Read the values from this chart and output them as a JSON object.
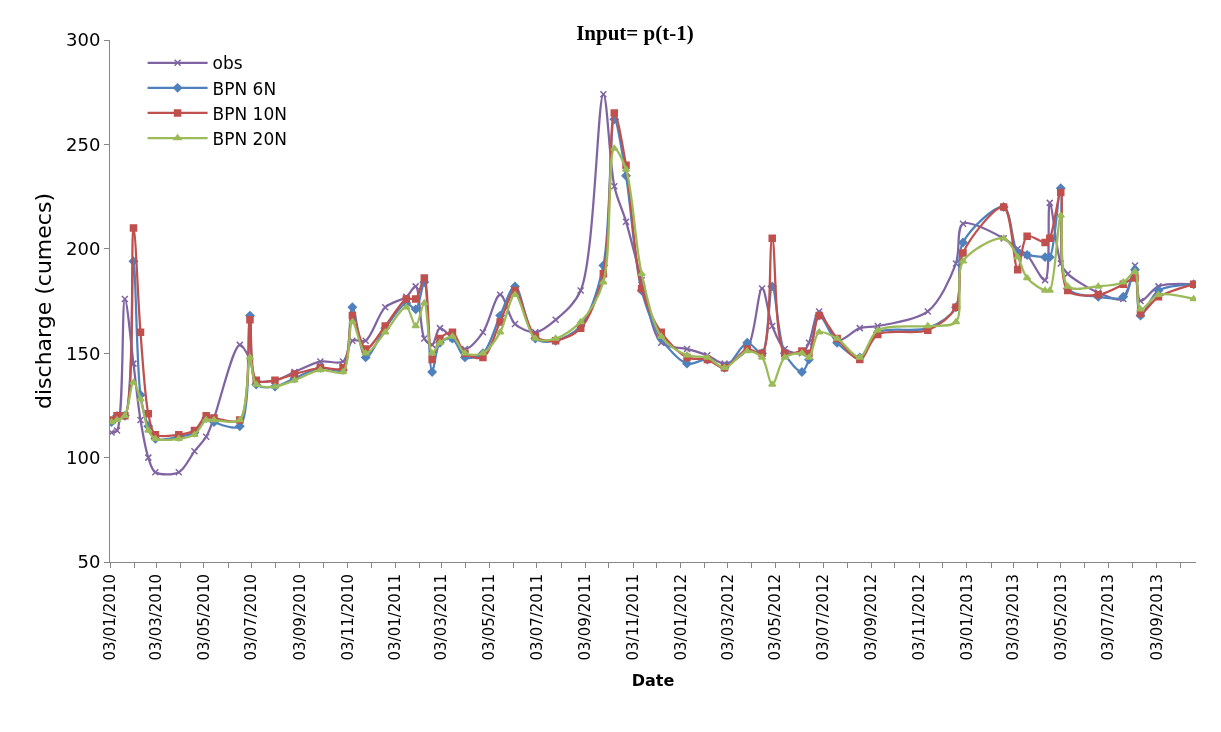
{
  "chart_data": {
    "type": "line",
    "title": "Input= p(t-1)",
    "xlabel": "Date",
    "ylabel": "discharge (cumecs)",
    "x": [
      "2010-01-05",
      "2010-01-12",
      "2010-01-22",
      "2010-02-02",
      "2010-02-11",
      "2010-02-21",
      "2010-03-02",
      "2010-04-01",
      "2010-04-21",
      "2010-05-06",
      "2010-05-16",
      "2010-06-18",
      "2010-07-01",
      "2010-07-09",
      "2010-08-02",
      "2010-08-27",
      "2010-09-29",
      "2010-10-28",
      "2010-11-09",
      "2010-11-26",
      "2010-12-21",
      "2011-01-17",
      "2011-01-29",
      "2011-02-09",
      "2011-02-19",
      "2011-03-01",
      "2011-03-17",
      "2011-04-02",
      "2011-04-25",
      "2011-05-17",
      "2011-06-05",
      "2011-07-01",
      "2011-07-27",
      "2011-08-28",
      "2011-09-26",
      "2011-10-10",
      "2011-10-25",
      "2011-11-14",
      "2011-12-09",
      "2012-01-11",
      "2012-02-06",
      "2012-02-28",
      "2012-03-28",
      "2012-04-16",
      "2012-04-29",
      "2012-05-15",
      "2012-06-06",
      "2012-06-15",
      "2012-06-28",
      "2012-07-21",
      "2012-08-19",
      "2012-09-11",
      "2012-11-14",
      "2012-12-20",
      "2012-12-29",
      "2013-02-19",
      "2013-03-09",
      "2013-03-21",
      "2013-04-13",
      "2013-04-19",
      "2013-05-03",
      "2013-05-12",
      "2013-06-20",
      "2013-07-22",
      "2013-08-06",
      "2013-08-13",
      "2013-09-05",
      "2013-10-20"
    ],
    "series": [
      {
        "name": "obs",
        "color": "#8064a2",
        "marker": "cross",
        "values": [
          112,
          113,
          176,
          145,
          118,
          100,
          93,
          93,
          103,
          110,
          119,
          154,
          147,
          137,
          137,
          141,
          146,
          146,
          156,
          156,
          172,
          177,
          182,
          157,
          154,
          162,
          157,
          152,
          160,
          178,
          164,
          160,
          166,
          180,
          274,
          230,
          213,
          185,
          155,
          152,
          149,
          145,
          152,
          181,
          163,
          152,
          150,
          155,
          170,
          156,
          162,
          163,
          170,
          193,
          212,
          205,
          200,
          197,
          185,
          222,
          193,
          188,
          179,
          176,
          192,
          175,
          182,
          183
        ]
      },
      {
        "name": "BPN 6N",
        "color": "#4f81bd",
        "marker": "diamond",
        "values": [
          117,
          120,
          120,
          194,
          130,
          115,
          109,
          110,
          112,
          119,
          117,
          115,
          168,
          135,
          134,
          138,
          143,
          142,
          172,
          148,
          162,
          174,
          171,
          184,
          141,
          155,
          157,
          148,
          150,
          168,
          182,
          157,
          156,
          163,
          192,
          262,
          235,
          180,
          157,
          145,
          147,
          143,
          155,
          150,
          182,
          150,
          141,
          147,
          168,
          155,
          148,
          160,
          162,
          172,
          203,
          220,
          198,
          197,
          196,
          196,
          229,
          181,
          177,
          177,
          190,
          168,
          180,
          183
        ]
      },
      {
        "name": "BPN 10N",
        "color": "#c0504d",
        "marker": "square",
        "values": [
          118,
          120,
          120,
          210,
          160,
          121,
          111,
          111,
          113,
          120,
          119,
          118,
          166,
          137,
          137,
          140,
          143,
          143,
          168,
          152,
          163,
          176,
          176,
          186,
          147,
          157,
          160,
          150,
          148,
          165,
          180,
          158,
          156,
          162,
          188,
          265,
          240,
          181,
          160,
          148,
          147,
          143,
          152,
          150,
          205,
          150,
          151,
          150,
          168,
          157,
          147,
          159,
          161,
          172,
          198,
          220,
          190,
          206,
          203,
          205,
          227,
          180,
          178,
          183,
          186,
          169,
          177,
          183
        ]
      },
      {
        "name": "BPN 20N",
        "color": "#9bbb59",
        "marker": "triangle",
        "values": [
          117,
          118,
          120,
          136,
          128,
          113,
          109,
          109,
          111,
          118,
          118,
          118,
          148,
          135,
          134,
          137,
          142,
          141,
          165,
          150,
          160,
          172,
          163,
          174,
          150,
          155,
          158,
          150,
          150,
          160,
          178,
          157,
          157,
          165,
          184,
          248,
          238,
          188,
          158,
          149,
          148,
          143,
          151,
          148,
          135,
          148,
          150,
          148,
          160,
          157,
          148,
          161,
          163,
          165,
          194,
          205,
          196,
          186,
          180,
          180,
          216,
          182,
          182,
          184,
          189,
          171,
          178,
          176
        ]
      }
    ],
    "xlim": [
      "2010-01-03",
      "2013-10-23"
    ],
    "xticks": [
      {
        "value": "2010-01-03",
        "label": "03/01/2010"
      },
      {
        "value": "2010-02-03",
        "label": null
      },
      {
        "value": "2010-03-03",
        "label": "03/03/2010"
      },
      {
        "value": "2010-04-03",
        "label": null
      },
      {
        "value": "2010-05-03",
        "label": "03/05/2010"
      },
      {
        "value": "2010-06-03",
        "label": null
      },
      {
        "value": "2010-07-03",
        "label": "03/07/2010"
      },
      {
        "value": "2010-08-03",
        "label": null
      },
      {
        "value": "2010-09-03",
        "label": "03/09/2010"
      },
      {
        "value": "2010-10-03",
        "label": null
      },
      {
        "value": "2010-11-03",
        "label": "03/11/2010"
      },
      {
        "value": "2010-12-03",
        "label": null
      },
      {
        "value": "2011-01-03",
        "label": "03/01/2011"
      },
      {
        "value": "2011-02-03",
        "label": null
      },
      {
        "value": "2011-03-03",
        "label": "03/03/2011"
      },
      {
        "value": "2011-04-03",
        "label": null
      },
      {
        "value": "2011-05-03",
        "label": "03/05/2011"
      },
      {
        "value": "2011-06-03",
        "label": null
      },
      {
        "value": "2011-07-03",
        "label": "03/07/2011"
      },
      {
        "value": "2011-08-03",
        "label": null
      },
      {
        "value": "2011-09-03",
        "label": "03/09/2011"
      },
      {
        "value": "2011-10-03",
        "label": null
      },
      {
        "value": "2011-11-03",
        "label": "03/11/2011"
      },
      {
        "value": "2011-12-03",
        "label": null
      },
      {
        "value": "2012-01-03",
        "label": "03/01/2012"
      },
      {
        "value": "2012-02-03",
        "label": null
      },
      {
        "value": "2012-03-03",
        "label": "03/03/2012"
      },
      {
        "value": "2012-04-03",
        "label": null
      },
      {
        "value": "2012-05-03",
        "label": "03/05/2012"
      },
      {
        "value": "2012-06-03",
        "label": null
      },
      {
        "value": "2012-07-03",
        "label": "03/07/2012"
      },
      {
        "value": "2012-08-03",
        "label": null
      },
      {
        "value": "2012-09-03",
        "label": "03/09/2012"
      },
      {
        "value": "2012-10-03",
        "label": null
      },
      {
        "value": "2012-11-03",
        "label": "03/11/2012"
      },
      {
        "value": "2012-12-03",
        "label": null
      },
      {
        "value": "2013-01-03",
        "label": "03/01/2013"
      },
      {
        "value": "2013-02-03",
        "label": null
      },
      {
        "value": "2013-03-03",
        "label": "03/03/2013"
      },
      {
        "value": "2013-04-03",
        "label": null
      },
      {
        "value": "2013-05-03",
        "label": "03/05/2013"
      },
      {
        "value": "2013-06-03",
        "label": null
      },
      {
        "value": "2013-07-03",
        "label": "03/07/2013"
      },
      {
        "value": "2013-08-03",
        "label": null
      },
      {
        "value": "2013-09-03",
        "label": "03/09/2013"
      },
      {
        "value": "2013-10-03",
        "label": null
      }
    ],
    "ylim": [
      50,
      300
    ],
    "yticks": [
      50,
      100,
      150,
      200,
      250,
      300
    ],
    "legend": "top left"
  }
}
